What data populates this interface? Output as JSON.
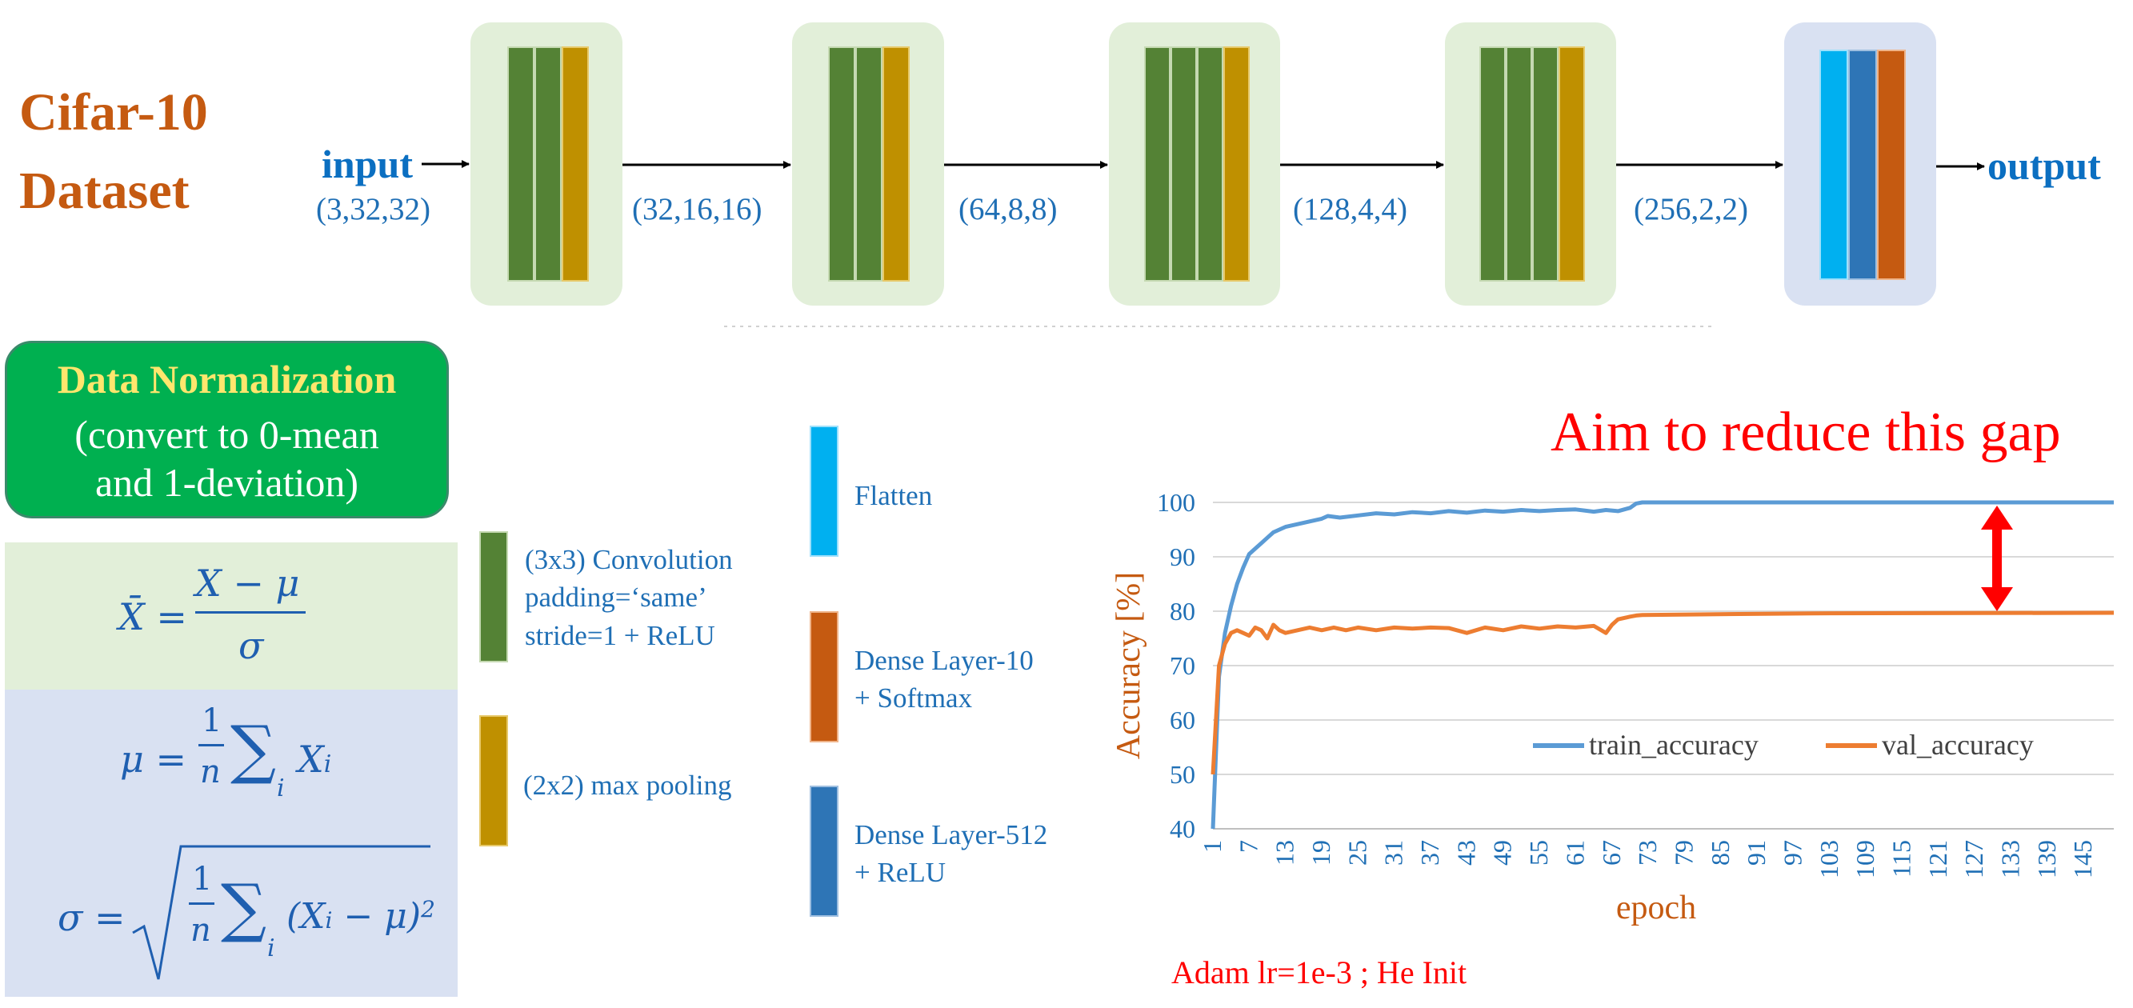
{
  "title": {
    "line1": "Cifar-10",
    "line2": "Dataset"
  },
  "pipeline": {
    "input_label": "input",
    "input_shape": "(3,32,32)",
    "output_label": "output",
    "shapes": [
      "(32,16,16)",
      "(64,8,8)",
      "(128,4,4)",
      "(256,2,2)"
    ]
  },
  "normalization": {
    "title": "Data Normalization",
    "subtitle_line1": "(convert to 0-mean",
    "subtitle_line2": "and 1-deviation)",
    "formulas": {
      "xbar": "X̄ = (X − μ) / σ",
      "mu": "μ = (1/n) Σᵢ Xᵢ",
      "sigma": "σ = √( (1/n) Σᵢ (Xᵢ − μ)² )"
    }
  },
  "legend": {
    "conv": "(3x3) Convolution\npadding=‘same’\nstride=1 + ReLU",
    "pool": "(2x2) max pooling",
    "flatten": "Flatten",
    "dense10": "Dense Layer-10\n+ Softmax",
    "dense512": "Dense Layer-512\n+ ReLU"
  },
  "colors": {
    "conv": "#548235",
    "pool": "#bf9000",
    "flatten": "#00b0f0",
    "dense10": "#c55a11",
    "dense512": "#2e75b6",
    "train": "#5b9bd5",
    "val": "#ed7d31",
    "annotation": "#ff0000"
  },
  "annotation": "Aim to reduce this gap",
  "footnote": "Adam lr=1e-3 ; He Init",
  "chart_data": {
    "type": "line",
    "xlabel": "epoch",
    "ylabel": "Accuracy [%]",
    "ylim": [
      40,
      100
    ],
    "yticks": [
      40,
      50,
      60,
      70,
      80,
      90,
      100
    ],
    "xlim": [
      1,
      150
    ],
    "xticks": [
      1,
      7,
      13,
      19,
      25,
      31,
      37,
      43,
      49,
      55,
      61,
      67,
      73,
      79,
      85,
      91,
      97,
      103,
      109,
      115,
      121,
      127,
      133,
      139,
      145
    ],
    "grid": true,
    "legend_position": "bottom-right",
    "series": [
      {
        "name": "train_accuracy",
        "x": [
          1,
          2,
          3,
          4,
          5,
          6,
          7,
          8,
          9,
          10,
          11,
          12,
          13,
          15,
          17,
          19,
          20,
          22,
          25,
          28,
          31,
          34,
          37,
          40,
          43,
          46,
          49,
          52,
          55,
          58,
          61,
          64,
          66,
          68,
          70,
          71,
          72,
          80,
          100,
          120,
          150
        ],
        "values": [
          40,
          68,
          76,
          81,
          85,
          88,
          90.5,
          91.5,
          92.5,
          93.5,
          94.5,
          95,
          95.5,
          96,
          96.5,
          97,
          97.5,
          97.2,
          97.6,
          98,
          97.8,
          98.2,
          98,
          98.4,
          98.1,
          98.5,
          98.3,
          98.6,
          98.4,
          98.6,
          98.7,
          98.3,
          98.6,
          98.4,
          99,
          99.8,
          100,
          100,
          100,
          100,
          100
        ]
      },
      {
        "name": "val_accuracy",
        "x": [
          1,
          2,
          3,
          4,
          5,
          6,
          7,
          8,
          9,
          10,
          11,
          12,
          13,
          15,
          17,
          19,
          21,
          23,
          25,
          28,
          31,
          34,
          37,
          40,
          43,
          46,
          49,
          52,
          55,
          58,
          61,
          64,
          66,
          67,
          68,
          70,
          71,
          72,
          80,
          100,
          150
        ],
        "values": [
          50,
          70,
          74,
          76,
          76.5,
          76,
          75.5,
          77,
          76.5,
          75,
          77.5,
          76.5,
          76,
          76.5,
          77,
          76.5,
          77,
          76.5,
          77,
          76.5,
          77,
          76.8,
          77,
          76.9,
          76,
          77,
          76.5,
          77.2,
          76.8,
          77.2,
          77,
          77.3,
          76,
          77.5,
          78.5,
          79,
          79.2,
          79.3,
          79.4,
          79.6,
          79.7
        ]
      }
    ]
  }
}
